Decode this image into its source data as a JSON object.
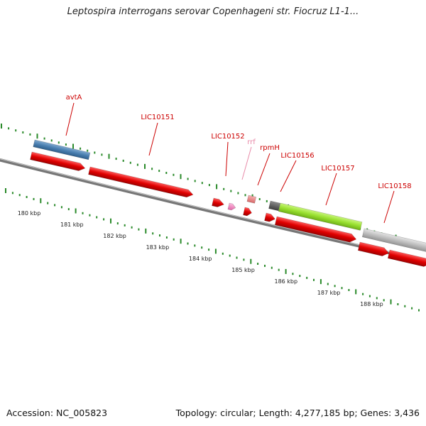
{
  "title": "Leptospira interrogans serovar Copenhageni str. Fiocruz L1-1...",
  "footer": {
    "accession": "Accession: NC_005823",
    "summary": "Topology: circular; Length: 4,277,185 bp; Genes: 3,436"
  },
  "colors": {
    "cds": "#dd0000",
    "rrna": "#e88080",
    "trna": "#f07ab8",
    "blue_feature": "#4a7fb0",
    "green_feature": "#99e030",
    "grey_feature": "#bdbdbd",
    "dark_feature": "#555555",
    "ticks": "#2a8a2a",
    "backbone": "#777777"
  },
  "gene_labels": [
    {
      "text": "avtA",
      "color": "#cc0000"
    },
    {
      "text": "LIC10151",
      "color": "#cc0000"
    },
    {
      "text": "LIC10152",
      "color": "#cc0000"
    },
    {
      "text": "rrf",
      "color": "#e88aa8"
    },
    {
      "text": "rpmH",
      "color": "#cc0000"
    },
    {
      "text": "LIC10156",
      "color": "#cc0000"
    },
    {
      "text": "LIC10157",
      "color": "#cc0000"
    },
    {
      "text": "LIC10158",
      "color": "#cc0000"
    }
  ],
  "kbp_labels": [
    "180 kbp",
    "181 kbp",
    "182 kbp",
    "183 kbp",
    "184 kbp",
    "185 kbp",
    "186 kbp",
    "187 kbp",
    "188 kbp"
  ]
}
